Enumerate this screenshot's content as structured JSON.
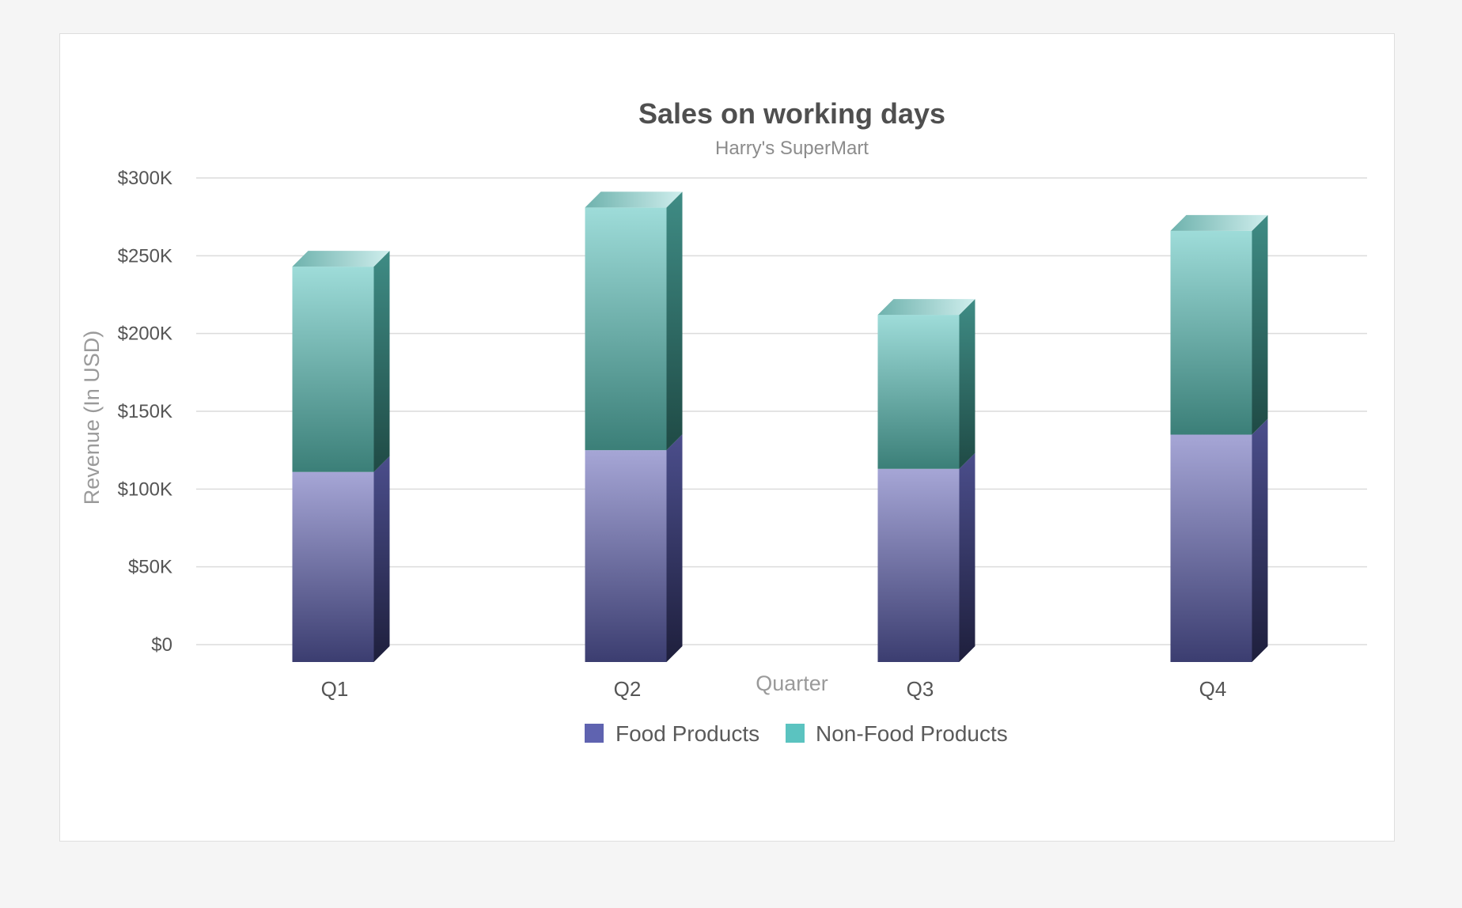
{
  "chart_data": {
    "type": "bar",
    "stacked": true,
    "style": "3d-column",
    "title": "Sales on working days",
    "subtitle": "Harry's SuperMart",
    "xlabel": "Quarter",
    "ylabel": "Revenue (In USD)",
    "categories": [
      "Q1",
      "Q2",
      "Q3",
      "Q4"
    ],
    "ylim": [
      0,
      300000
    ],
    "yticks": [
      0,
      50000,
      100000,
      150000,
      200000,
      250000,
      300000
    ],
    "ytick_labels": [
      "$0",
      "$50K",
      "$100K",
      "$150K",
      "$200K",
      "$250K",
      "$300K"
    ],
    "grid": true,
    "legend_position": "bottom-center",
    "series": [
      {
        "name": "Food Products",
        "values": [
          111000,
          125000,
          113000,
          135000
        ],
        "color": "#5f63b0"
      },
      {
        "name": "Non-Food Products",
        "values": [
          132000,
          156000,
          99000,
          131000
        ],
        "color": "#5bc3c0"
      }
    ]
  }
}
